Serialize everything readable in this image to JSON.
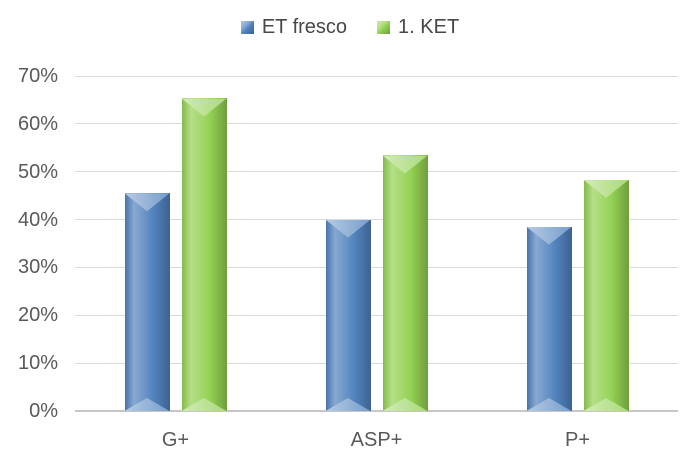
{
  "chart_data": {
    "type": "bar",
    "title": "",
    "xlabel": "",
    "ylabel": "",
    "categories": [
      "G+",
      "ASP+",
      "P+"
    ],
    "series": [
      {
        "name": "ET fresco",
        "color": "#4F81BD",
        "values": [
          45.5,
          40.0,
          38.5
        ]
      },
      {
        "name": "1. KET",
        "color": "#92D050",
        "values": [
          65.3,
          53.4,
          48.3
        ]
      }
    ],
    "ylim": [
      0,
      70
    ],
    "ytick_step": 10,
    "ytick_labels": [
      "0%",
      "10%",
      "20%",
      "30%",
      "40%",
      "50%",
      "60%",
      "70%"
    ],
    "grid": true,
    "gridline_color": "#d9d9d9",
    "axis_line_color": "#c6c6c6",
    "label_color": "#595959",
    "legend_position": "top-center",
    "bar_style": "beveled-3d"
  }
}
